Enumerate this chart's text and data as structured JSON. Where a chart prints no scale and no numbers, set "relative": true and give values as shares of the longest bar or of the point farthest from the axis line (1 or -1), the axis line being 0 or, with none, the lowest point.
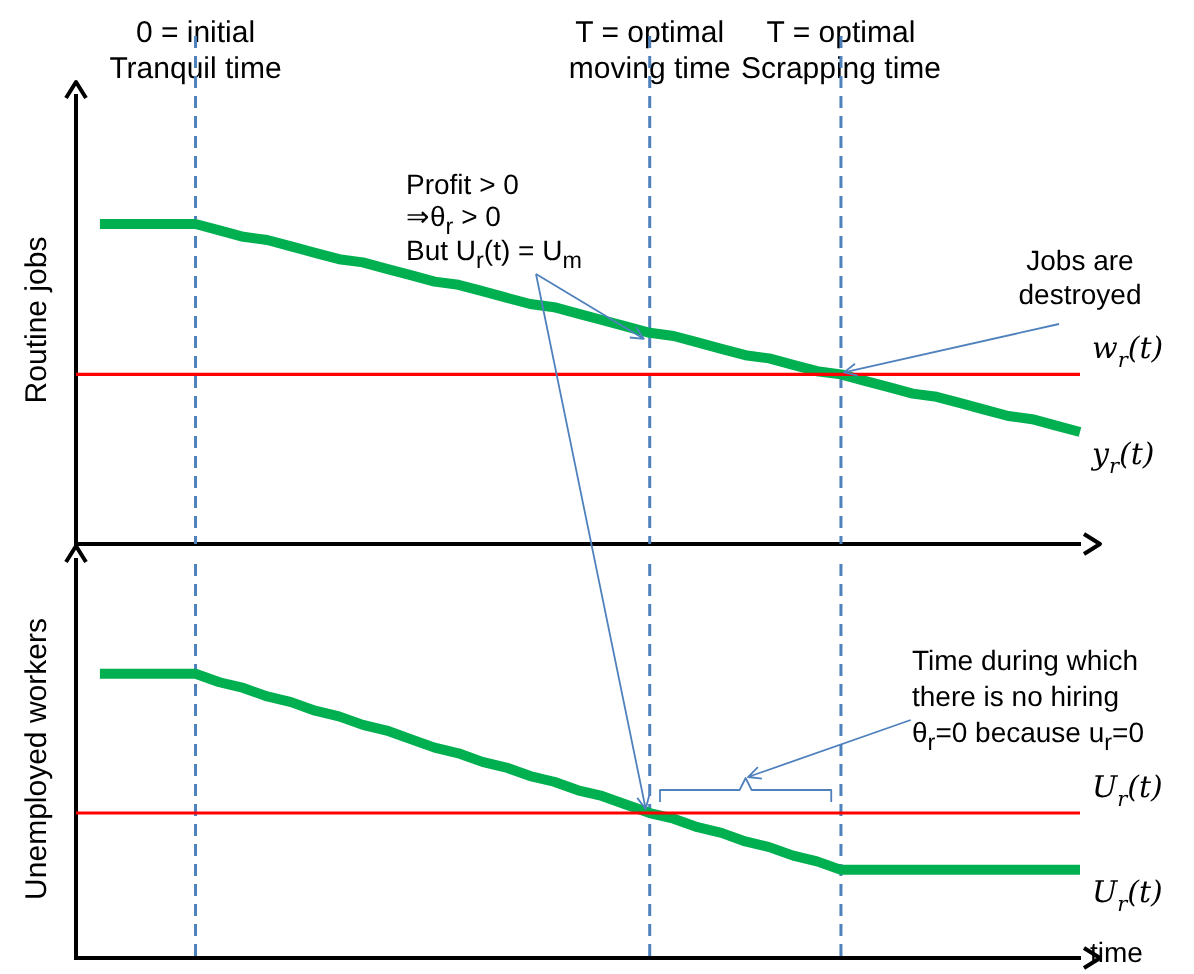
{
  "chart_data": [
    {
      "type": "line",
      "relative": true,
      "ylabel": "Routine jobs",
      "tick_labels": "x",
      "categories": [
        null,
        null,
        null,
        null,
        null,
        "0 = initial Tranquil time",
        null,
        null,
        null,
        null,
        null,
        null,
        null,
        null,
        null,
        null,
        null,
        null,
        null,
        null,
        null,
        null,
        null,
        null,
        "T = optimal moving time",
        null,
        null,
        null,
        null,
        null,
        null,
        null,
        "T = optimal Scrapping time",
        null,
        null,
        null,
        null,
        null,
        null,
        null,
        null,
        null,
        null
      ],
      "series": [
        {
          "name": "w$_{r}$(t)",
          "color": "#ff0000",
          "values": [
            0.53,
            0.53,
            0.53,
            0.53,
            0.53,
            0.53,
            0.53,
            0.53,
            0.53,
            0.53,
            0.53,
            0.53,
            0.53,
            0.53,
            0.53,
            0.53,
            0.53,
            0.53,
            0.53,
            0.53,
            0.53,
            0.53,
            0.53,
            0.53,
            0.53,
            0.53,
            0.53,
            0.53,
            0.53,
            0.53,
            0.53,
            0.53,
            0.53,
            0.53,
            0.53,
            0.53,
            0.53,
            0.53,
            0.53,
            0.53,
            0.53,
            0.53,
            0.53
          ]
        },
        {
          "name": "y$_{r}$(t)",
          "color": "#00b050",
          "values": [
            null,
            1,
            1,
            1,
            1,
            1,
            0.98,
            0.96,
            0.95,
            0.93,
            0.91,
            0.89,
            0.88,
            0.86,
            0.84,
            0.82,
            0.81,
            0.79,
            0.77,
            0.75,
            0.74,
            0.72,
            0.7,
            0.68,
            0.66,
            0.65,
            0.63,
            0.61,
            0.59,
            0.58,
            0.56,
            0.54,
            0.53,
            0.51,
            0.49,
            0.47,
            0.46,
            0.44,
            0.42,
            0.4,
            0.39,
            0.37,
            0.35
          ]
        }
      ],
      "ref_lines": [
        {
          "axis": "x",
          "value": "0 = initial Tranquil time",
          "color": "#4f81bd",
          "line_style": "dashed"
        },
        {
          "axis": "x",
          "value": "T = optimal moving time",
          "color": "#4f81bd",
          "line_style": "dashed"
        },
        {
          "axis": "x",
          "value": "T = optimal Scrapping time",
          "color": "#4f81bd",
          "line_style": "dashed"
        }
      ],
      "annotations": [
        "Profit > 0",
        "⇒θ$_{r}$ > 0",
        "But U$_{r}$(t) = U$_{m}$",
        "Jobs are destroyed"
      ],
      "marker": "none",
      "line_style": "solid",
      "grid": false
    },
    {
      "type": "line",
      "relative": true,
      "ylabel": "Unemployed workers",
      "xlabel": "time",
      "tick_labels": false,
      "categories": [
        null,
        null,
        null,
        null,
        null,
        "0 = initial Tranquil time",
        null,
        null,
        null,
        null,
        null,
        null,
        null,
        null,
        null,
        null,
        null,
        null,
        null,
        null,
        null,
        null,
        null,
        null,
        "T = optimal moving time",
        null,
        null,
        null,
        null,
        null,
        null,
        null,
        "T = optimal Scrapping time",
        null,
        null,
        null,
        null,
        null,
        null,
        null,
        null,
        null,
        null
      ],
      "series": [
        {
          "name": "U$_{r}$(t)",
          "color": "#ff0000",
          "values": [
            0.51,
            0.51,
            0.51,
            0.51,
            0.51,
            0.51,
            0.51,
            0.51,
            0.51,
            0.51,
            0.51,
            0.51,
            0.51,
            0.51,
            0.51,
            0.51,
            0.51,
            0.51,
            0.51,
            0.51,
            0.51,
            0.51,
            0.51,
            0.51,
            0.51,
            0.51,
            0.51,
            0.51,
            0.51,
            0.51,
            0.51,
            0.51,
            0.51,
            0.51,
            0.51,
            0.51,
            0.51,
            0.51,
            0.51,
            0.51,
            0.51,
            0.51,
            0.51
          ]
        },
        {
          "name": "U$_{r}$(t)",
          "color": "#00b050",
          "values": [
            null,
            1,
            1,
            1,
            1,
            1,
            0.97,
            0.95,
            0.92,
            0.9,
            0.87,
            0.85,
            0.82,
            0.8,
            0.77,
            0.74,
            0.72,
            0.69,
            0.67,
            0.64,
            0.62,
            0.59,
            0.57,
            0.54,
            0.51,
            0.49,
            0.46,
            0.44,
            0.41,
            0.39,
            0.36,
            0.34,
            0.31,
            0.31,
            0.31,
            0.31,
            0.31,
            0.31,
            0.31,
            0.31,
            0.31,
            0.31,
            0.31
          ]
        }
      ],
      "ref_lines": [
        {
          "axis": "x",
          "value": "0 = initial Tranquil time",
          "color": "#4f81bd",
          "line_style": "dashed"
        },
        {
          "axis": "x",
          "value": "T = optimal moving time",
          "color": "#4f81bd",
          "line_style": "dashed"
        },
        {
          "axis": "x",
          "value": "T = optimal Scrapping time",
          "color": "#4f81bd",
          "line_style": "dashed"
        }
      ],
      "annotations": [
        "Time during which",
        "there is no hiring",
        "θ$_{r}$=0 because u$_{r}$=0"
      ],
      "marker": "none",
      "line_style": "solid",
      "grid": false
    }
  ]
}
